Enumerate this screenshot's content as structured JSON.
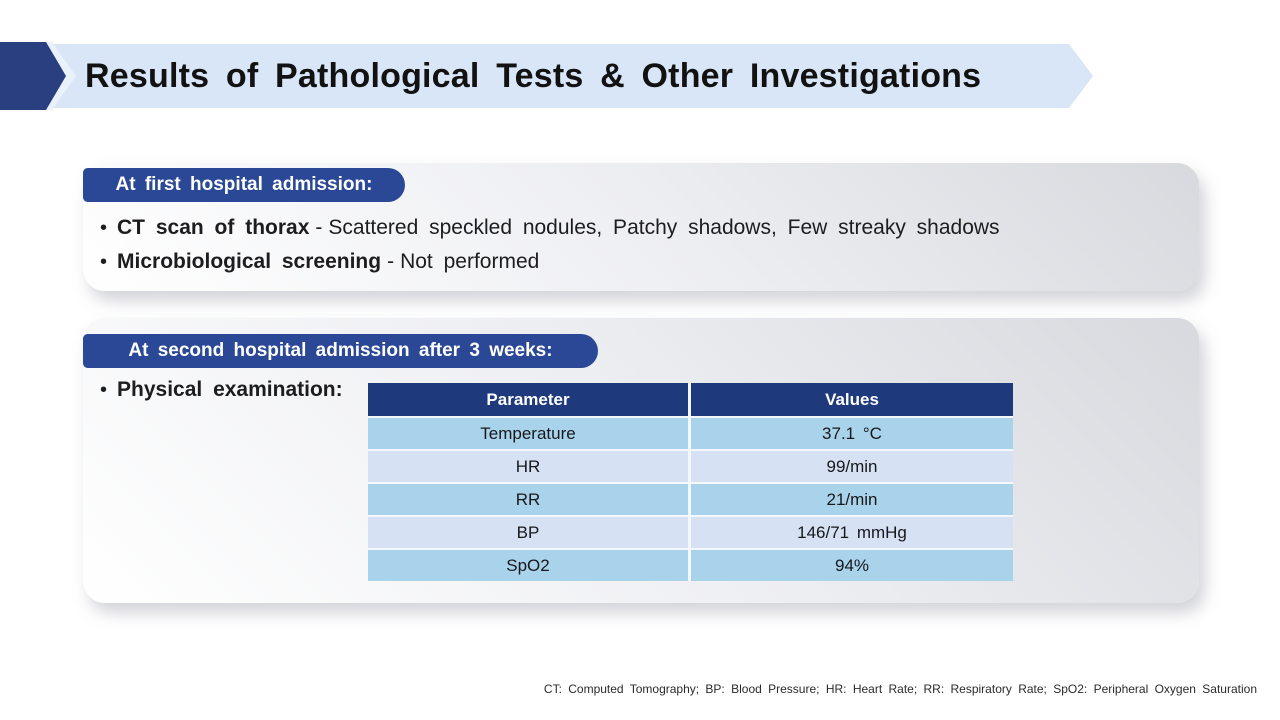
{
  "colors": {
    "banner_bg": "#d9e6f7",
    "banner_arrow": "#2a3f80",
    "banner_arrow_halo": "#e9f1fb",
    "pill_bg": "#2b4896",
    "table_header_bg": "#1e3a7c",
    "row_odd": "#a9d3ea",
    "row_even": "#d6e1f4",
    "card_grad_start": "#ffffff",
    "card_grad_end": "#d8d9de",
    "title_color": "#121212",
    "text_color": "#1d1d1f"
  },
  "title": "Results of Pathological Tests & Other Investigations",
  "cards": [
    {
      "header": "At first hospital admission:",
      "bullets": [
        {
          "bullet": "•",
          "label": "CT scan of thorax",
          "sep": "-",
          "text": "Scattered speckled nodules, Patchy shadows, Few streaky shadows"
        },
        {
          "bullet": "•",
          "label": "Microbiological screening",
          "sep": "-",
          "text": "Not performed"
        }
      ]
    },
    {
      "header": "At second hospital admission after 3 weeks:",
      "bullet": "•",
      "bullet_label": "Physical examination:",
      "table": {
        "columns": [
          "Parameter",
          "Values"
        ],
        "rows": [
          [
            "Temperature",
            "37.1 °C"
          ],
          [
            "HR",
            "99/min"
          ],
          [
            "RR",
            "21/min"
          ],
          [
            "BP",
            "146/71 mmHg"
          ],
          [
            "SpO2",
            "94%"
          ]
        ]
      }
    }
  ],
  "footer": "CT: Computed Tomography; BP: Blood Pressure; HR: Heart Rate; RR: Respiratory Rate; SpO2: Peripheral Oxygen Saturation"
}
